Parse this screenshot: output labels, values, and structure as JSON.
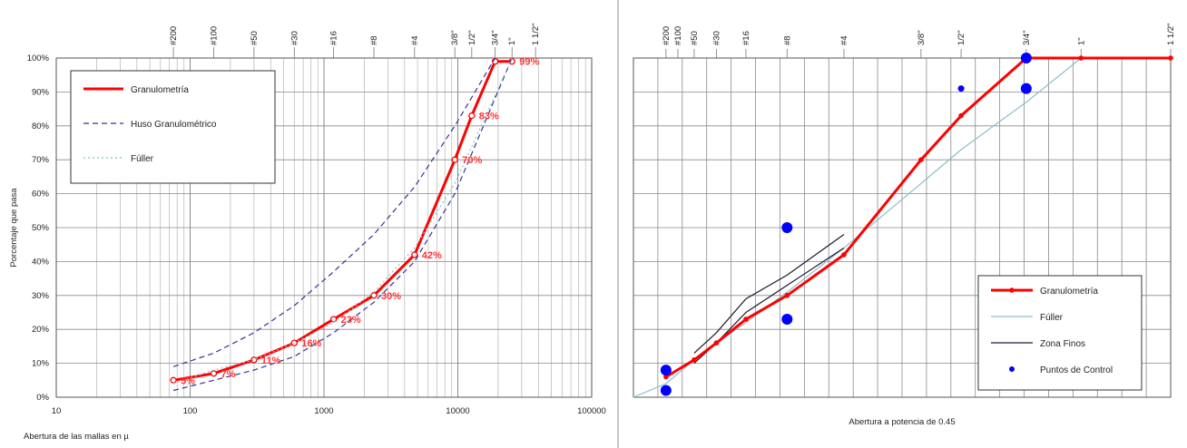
{
  "chart_data": [
    {
      "type": "line",
      "xscale": "log",
      "xlim": [
        10,
        100000
      ],
      "ylim": [
        0,
        100
      ],
      "grid": true,
      "legend_placement": "top-left",
      "xlabel": "Abertura de las mallas en µ",
      "ylabel": "Porcentaje que pasa",
      "x_ticks": [
        "10",
        "100",
        "1000",
        "10000",
        "100000"
      ],
      "y_ticks": [
        "0%",
        "10%",
        "20%",
        "30%",
        "40%",
        "50%",
        "60%",
        "70%",
        "80%",
        "90%",
        "100%"
      ],
      "sieves": [
        {
          "label": "#200",
          "x": 75
        },
        {
          "label": "#100",
          "x": 150
        },
        {
          "label": "#50",
          "x": 300
        },
        {
          "label": "#30",
          "x": 600
        },
        {
          "label": "#16",
          "x": 1180
        },
        {
          "label": "#8",
          "x": 2360
        },
        {
          "label": "#4",
          "x": 4750
        },
        {
          "label": "3/8\"",
          "x": 9500
        },
        {
          "label": "1/2\"",
          "x": 12700
        },
        {
          "label": "3/4\"",
          "x": 19000
        },
        {
          "label": "1\"",
          "x": 25400
        },
        {
          "label": "1 1/2\"",
          "x": 38100
        }
      ],
      "series": [
        {
          "name": "Granulometría",
          "color": "#ff0000",
          "style": "solid",
          "x": [
            75,
            150,
            300,
            600,
            1180,
            2360,
            4750,
            9500,
            12700,
            19000,
            25400
          ],
          "y": [
            5,
            7,
            11,
            16,
            23,
            30,
            42,
            70,
            83,
            99,
            99
          ]
        },
        {
          "name": "Huso Granulométrico",
          "color": "#333399",
          "style": "dashed",
          "x": [
            75,
            150,
            300,
            600,
            1180,
            2360,
            4750,
            9500,
            19000
          ],
          "y": [
            9,
            13,
            19,
            27,
            37,
            48,
            62,
            80,
            100
          ]
        },
        {
          "name": "Huso Granulométrico",
          "color": "#333399",
          "style": "dashed",
          "show_in_legend": false,
          "x": [
            75,
            150,
            300,
            600,
            1180,
            2360,
            4750,
            9500,
            25400
          ],
          "y": [
            2,
            5,
            8,
            12,
            19,
            28,
            40,
            60,
            100
          ]
        },
        {
          "name": "Fúller",
          "color": "#88c0c8",
          "style": "dotted",
          "x": [
            75,
            150,
            300,
            600,
            1180,
            2360,
            4750,
            9500,
            19000,
            25400
          ],
          "y": [
            4,
            8,
            11,
            16,
            22,
            31,
            44,
            63,
            89,
            100
          ]
        }
      ],
      "data_labels": [
        {
          "x": 75,
          "y": 5,
          "text": "5%"
        },
        {
          "x": 150,
          "y": 7,
          "text": "7%"
        },
        {
          "x": 300,
          "y": 11,
          "text": "11%"
        },
        {
          "x": 600,
          "y": 16,
          "text": "16%"
        },
        {
          "x": 1180,
          "y": 23,
          "text": "23%"
        },
        {
          "x": 2360,
          "y": 30,
          "text": "30%"
        },
        {
          "x": 4750,
          "y": 42,
          "text": "42%"
        },
        {
          "x": 9500,
          "y": 70,
          "text": "70%"
        },
        {
          "x": 12700,
          "y": 83,
          "text": "83%"
        },
        {
          "x": 25400,
          "y": 99,
          "text": "99%"
        }
      ]
    },
    {
      "type": "line",
      "xscale": "power 0.45",
      "xlim": [
        0,
        38.1
      ],
      "ylim": [
        0,
        100
      ],
      "grid": true,
      "legend_placement": "bottom-right",
      "xlabel": "Abertura a potencia de 0.45",
      "sieves": [
        {
          "label": "#200",
          "x": 0.075
        },
        {
          "label": "#100",
          "x": 0.15
        },
        {
          "label": "#50",
          "x": 0.3
        },
        {
          "label": "#30",
          "x": 0.6
        },
        {
          "label": "#16",
          "x": 1.18
        },
        {
          "label": "#8",
          "x": 2.36
        },
        {
          "label": "#4",
          "x": 4.75
        },
        {
          "label": "3/8\"",
          "x": 9.5
        },
        {
          "label": "1/2\"",
          "x": 12.7
        },
        {
          "label": "3/4\"",
          "x": 19.0
        },
        {
          "label": "1\"",
          "x": 25.4
        },
        {
          "label": "1 1/2\"",
          "x": 38.1
        }
      ],
      "series": [
        {
          "name": "Granulometría",
          "color": "#ff0000",
          "style": "solid",
          "x": [
            0.075,
            0.3,
            0.6,
            1.18,
            2.36,
            4.75,
            9.5,
            12.7,
            19.0,
            25.4,
            38.1
          ],
          "y": [
            6,
            11,
            16,
            23,
            30,
            42,
            70,
            83,
            100,
            100,
            100
          ]
        },
        {
          "name": "Fúller",
          "color": "#88c0c8",
          "style": "solid",
          "x": [
            0.0,
            0.075,
            0.3,
            0.6,
            1.18,
            2.36,
            4.75,
            9.5,
            12.7,
            19.0,
            25.4
          ],
          "y": [
            0,
            4,
            11,
            16,
            22,
            31,
            44,
            63,
            73,
            87,
            100
          ]
        },
        {
          "name": "Zona Finos",
          "color": "#1a1a2e",
          "style": "solid",
          "x": [
            0.3,
            0.6,
            1.18,
            2.36,
            4.75
          ],
          "y": [
            13,
            19,
            29,
            36,
            48
          ]
        },
        {
          "name": "Zona Finos",
          "color": "#1a1a2e",
          "style": "solid",
          "show_in_legend": false,
          "x": [
            0.3,
            0.6,
            1.18,
            2.36,
            4.75
          ],
          "y": [
            10,
            16,
            25,
            33,
            44
          ]
        },
        {
          "name": "Puntos de Control",
          "color": "#0000ff",
          "style": "markers",
          "x": [
            0.075,
            0.075,
            2.36,
            2.36,
            12.7,
            19.0,
            19.0
          ],
          "y": [
            2,
            8,
            50,
            23,
            91,
            100,
            91
          ]
        }
      ]
    }
  ]
}
